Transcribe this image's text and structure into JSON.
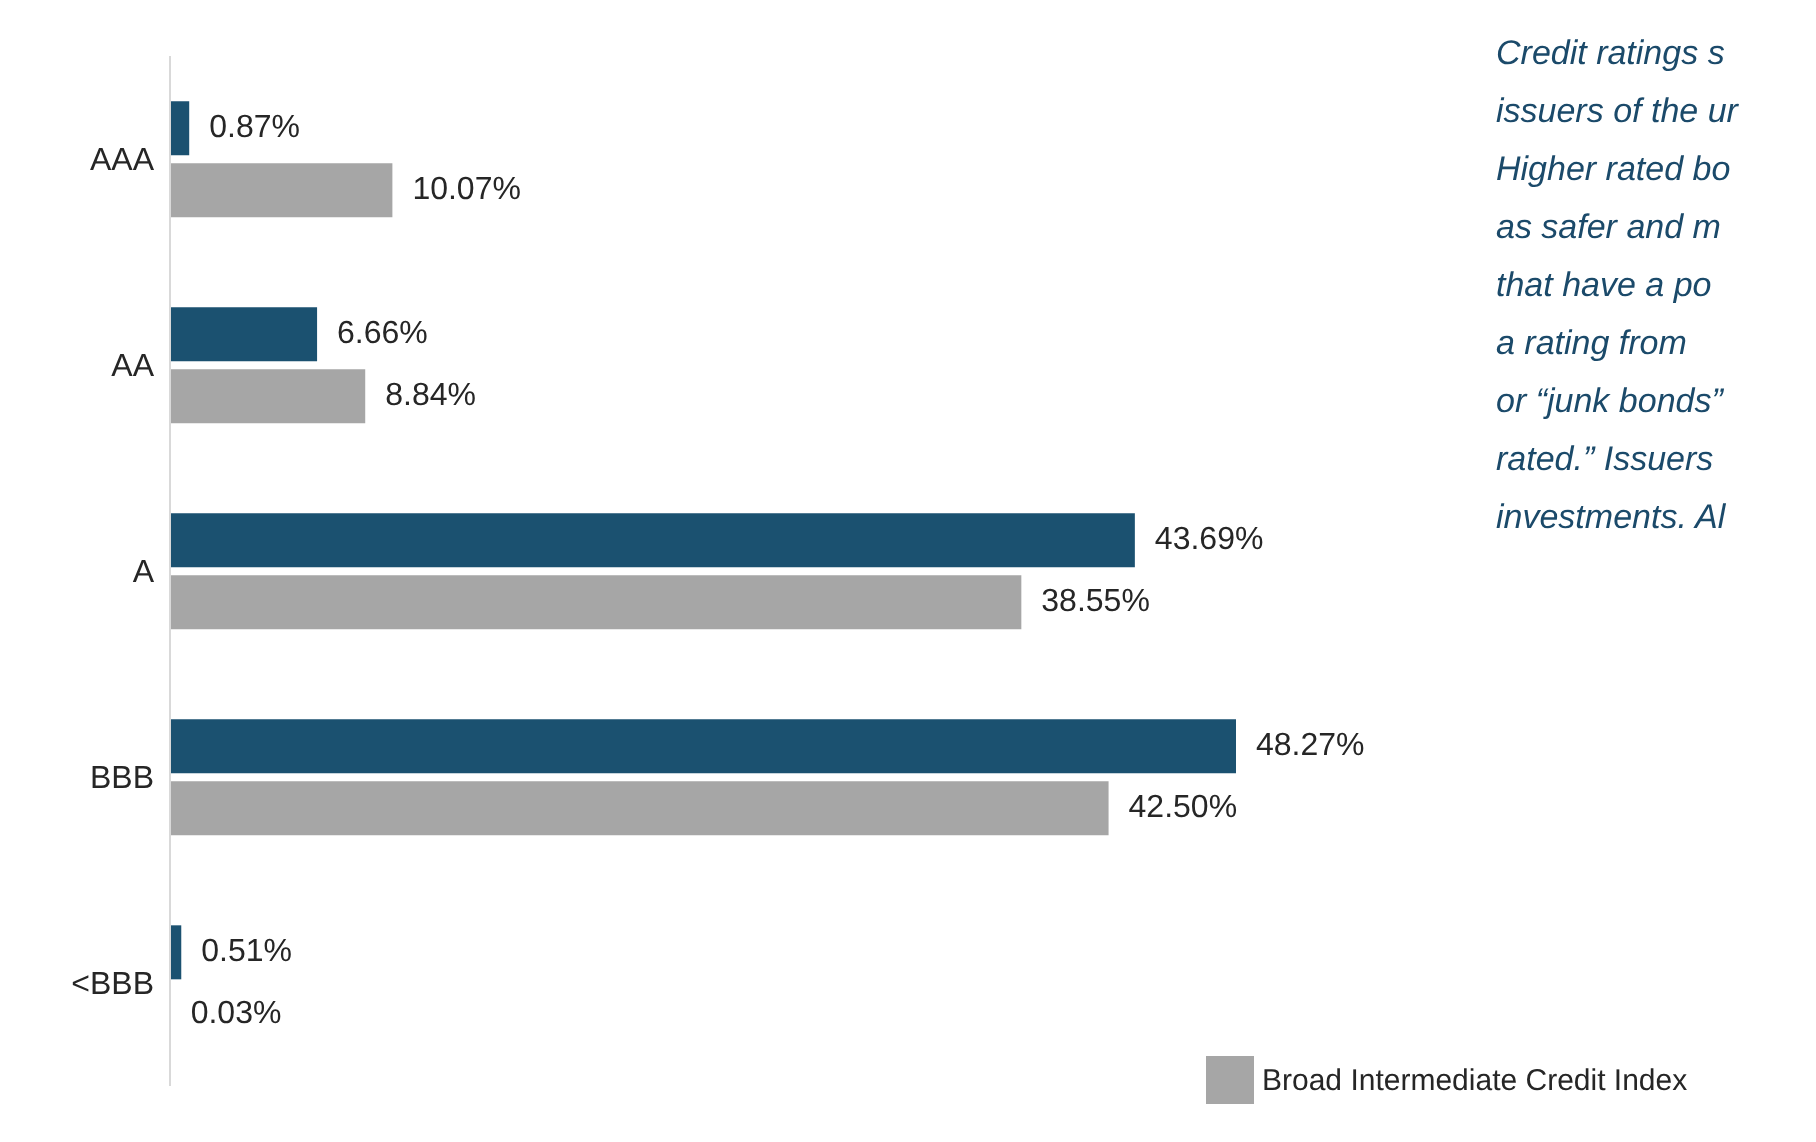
{
  "chart_data": {
    "type": "bar",
    "orientation": "horizontal",
    "categories": [
      "AAA",
      "AA",
      "A",
      "BBB",
      "<BBB"
    ],
    "series": [
      {
        "color": "#1b5170",
        "values": [
          0.87,
          6.66,
          43.69,
          48.27,
          0.51
        ],
        "value_labels": [
          "0.87%",
          "6.66%",
          "43.69%",
          "48.27%",
          "0.51%"
        ]
      },
      {
        "name": "Broad Intermediate Credit Index",
        "color": "#a6a6a6",
        "values": [
          10.07,
          8.84,
          38.55,
          42.5,
          0.03
        ],
        "value_labels": [
          "10.07%",
          "8.84%",
          "38.55%",
          "42.50%",
          "0.03%"
        ]
      }
    ],
    "legend": "bottom right",
    "grid": false,
    "annotations": [
      "Credit ratings s",
      "issuers of the ur",
      "Higher rated bo",
      "as safer and m",
      "that have a po",
      "a rating from",
      "or “junk bonds”",
      "rated.” Issuers",
      "investments. Al"
    ]
  }
}
